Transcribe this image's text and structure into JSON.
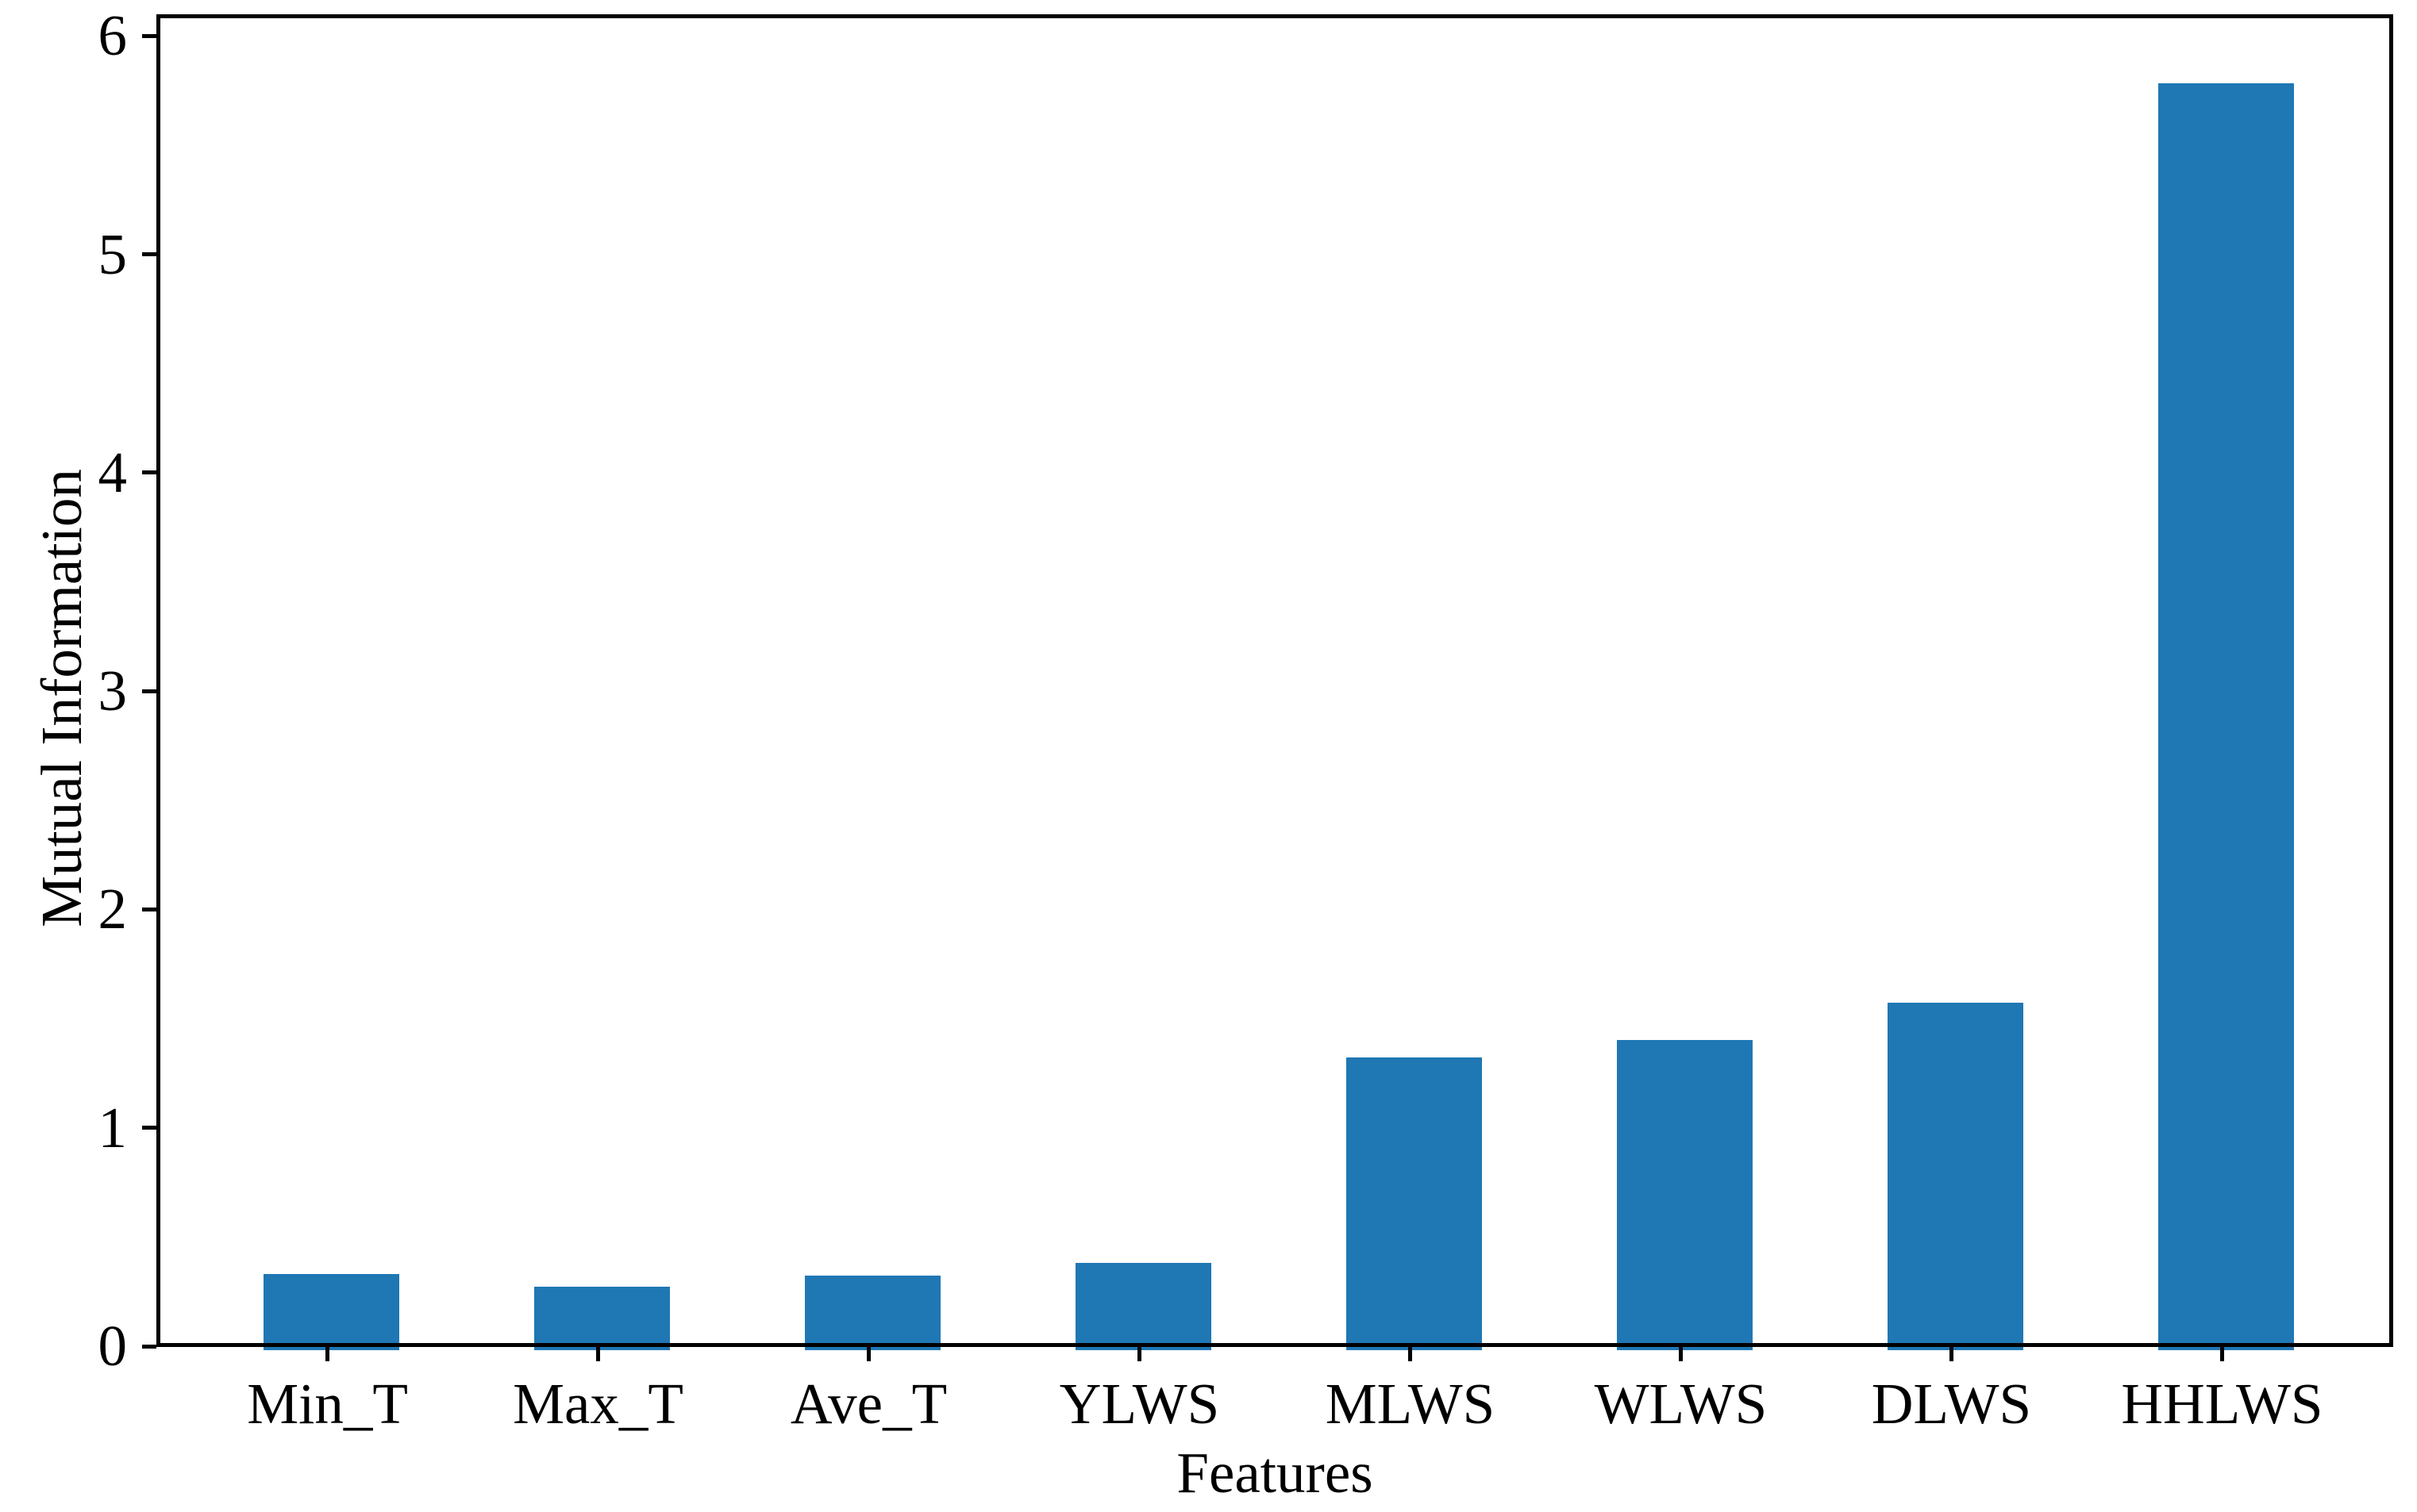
{
  "chart_data": {
    "type": "bar",
    "title": "",
    "xlabel": "Features",
    "ylabel": "Mutual Information",
    "categories": [
      "Min_T",
      "Max_T",
      "Ave_T",
      "YLWS",
      "MLWS",
      "WLWS",
      "DLWS",
      "HHLWS"
    ],
    "values": [
      0.35,
      0.29,
      0.34,
      0.4,
      1.34,
      1.42,
      1.59,
      5.8
    ],
    "yticks": [
      0,
      1,
      2,
      3,
      4,
      5,
      6
    ],
    "ylim": [
      0,
      6.09
    ],
    "xlim_units": [
      -0.625,
      7.625
    ],
    "bar_width_units": 0.5,
    "bar_color": "#1f77b4",
    "axis_color": "#000000",
    "background_color": "#ffffff",
    "grid": false,
    "legend": null
  }
}
